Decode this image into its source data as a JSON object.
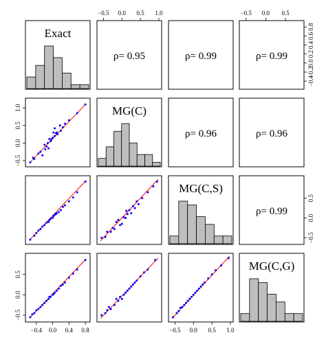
{
  "chart_data": {
    "type": "scatter",
    "layout": "pairs-matrix",
    "variables": [
      "Exact",
      "MG(C)",
      "MG(C,S)",
      "MG(C,G)"
    ],
    "correlations": [
      {
        "row": 0,
        "col": 1,
        "text": "ρ= 0.95",
        "value": 0.95
      },
      {
        "row": 0,
        "col": 2,
        "text": "ρ= 0.99",
        "value": 0.99
      },
      {
        "row": 0,
        "col": 3,
        "text": "ρ= 0.99",
        "value": 0.99
      },
      {
        "row": 1,
        "col": 2,
        "text": "ρ= 0.96",
        "value": 0.96
      },
      {
        "row": 1,
        "col": 3,
        "text": "ρ= 0.96",
        "value": 0.96
      },
      {
        "row": 2,
        "col": 3,
        "text": "ρ= 0.99",
        "value": 0.99
      }
    ],
    "axes": {
      "top": [
        {
          "col": 1,
          "lim": [
            -0.6,
            1.0
          ],
          "ticks": [
            -0.5,
            0.0,
            0.5,
            1.0
          ],
          "labels": [
            "−0.5",
            "0.0",
            "0.5",
            "1.0"
          ]
        },
        {
          "col": 3,
          "lim": [
            -0.6,
            0.9
          ],
          "ticks": [
            -0.5,
            0.0,
            0.5
          ],
          "labels": [
            "−0.5",
            "0.0",
            "0.5"
          ]
        }
      ],
      "bottom": [
        {
          "col": 0,
          "lim": [
            -0.6,
            0.85
          ],
          "ticks": [
            -0.4,
            0.0,
            0.4,
            0.8
          ],
          "labels": [
            "−0.4",
            "0.0",
            "0.4",
            "0.8"
          ]
        },
        {
          "col": 2,
          "lim": [
            -0.6,
            1.0
          ],
          "ticks": [
            -0.5,
            0.0,
            0.5,
            1.0
          ],
          "labels": [
            "−0.5",
            "0.0",
            "0.5",
            "1.0"
          ]
        }
      ],
      "left": [
        {
          "row": 1,
          "lim": [
            -0.6,
            1.2
          ],
          "ticks": [
            -0.5,
            0.0,
            0.5,
            1.0
          ],
          "labels": [
            "−0.5",
            "0.0",
            "0.5",
            "1.0"
          ]
        },
        {
          "row": 3,
          "lim": [
            -0.6,
            0.95
          ],
          "ticks": [
            -0.5,
            0.0,
            0.5
          ],
          "labels": [
            "−0.5",
            "0.0",
            "0.5"
          ]
        }
      ],
      "right": [
        {
          "row": 0,
          "lim": [
            -0.52,
            0.88
          ],
          "ticks": [
            -0.4,
            -0.2,
            0.0,
            0.2,
            0.4,
            0.6,
            0.8
          ],
          "labels": [
            "−0.4",
            "−0.2",
            "0.0",
            "0.2",
            "0.4",
            "0.6",
            "0.8"
          ]
        },
        {
          "row": 2,
          "lim": [
            -0.6,
            1.0
          ],
          "ticks": [
            -0.5,
            0.0,
            0.5
          ],
          "labels": [
            "−0.5",
            "0.0",
            "0.5"
          ]
        }
      ]
    },
    "histograms": [
      {
        "variable": "Exact",
        "counts": [
          3,
          6,
          11,
          8,
          4,
          1,
          1
        ]
      },
      {
        "variable": "MG(C)",
        "counts": [
          2,
          5,
          9,
          11,
          6,
          3,
          3,
          1
        ]
      },
      {
        "variable": "MG(C,S)",
        "counts": [
          2,
          11,
          10,
          7,
          5,
          2,
          2
        ]
      },
      {
        "variable": "MG(C,G)",
        "counts": [
          2,
          11,
          10,
          7,
          5,
          2,
          2
        ]
      }
    ],
    "scatter": [
      {
        "row": 1,
        "col": 0,
        "y_var": "MG(C)",
        "x_var": "Exact",
        "x_lim": [
          -0.6,
          0.85
        ],
        "y_lim": [
          -0.6,
          1.2
        ],
        "fit": [
          [
            -0.57,
            -0.57
          ],
          [
            0.82,
            1.12
          ]
        ],
        "points": [
          [
            -0.55,
            -0.55
          ],
          [
            -0.48,
            -0.42
          ],
          [
            -0.45,
            -0.45
          ],
          [
            -0.35,
            -0.3
          ],
          [
            -0.3,
            -0.25
          ],
          [
            -0.25,
            -0.35
          ],
          [
            -0.2,
            -0.05
          ],
          [
            -0.18,
            -0.18
          ],
          [
            -0.15,
            -0.1
          ],
          [
            -0.12,
            0.0
          ],
          [
            -0.1,
            -0.15
          ],
          [
            -0.08,
            0.12
          ],
          [
            -0.05,
            0.05
          ],
          [
            -0.03,
            0.1
          ],
          [
            0.0,
            0.15
          ],
          [
            0.02,
            0.3
          ],
          [
            0.05,
            0.2
          ],
          [
            0.05,
            0.42
          ],
          [
            0.08,
            0.28
          ],
          [
            0.1,
            0.3
          ],
          [
            0.12,
            0.25
          ],
          [
            0.18,
            0.5
          ],
          [
            0.2,
            0.35
          ],
          [
            0.25,
            0.45
          ],
          [
            0.3,
            0.55
          ],
          [
            0.4,
            0.65
          ],
          [
            0.6,
            0.85
          ],
          [
            0.8,
            1.1
          ]
        ]
      },
      {
        "row": 2,
        "col": 0,
        "y_var": "MG(C,S)",
        "x_var": "Exact",
        "x_lim": [
          -0.6,
          0.85
        ],
        "y_lim": [
          -0.6,
          1.0
        ],
        "fit": [
          [
            -0.57,
            -0.56
          ],
          [
            0.82,
            0.95
          ]
        ],
        "points": [
          [
            -0.55,
            -0.55
          ],
          [
            -0.45,
            -0.45
          ],
          [
            -0.4,
            -0.38
          ],
          [
            -0.35,
            -0.32
          ],
          [
            -0.3,
            -0.28
          ],
          [
            -0.25,
            -0.22
          ],
          [
            -0.2,
            -0.18
          ],
          [
            -0.15,
            -0.12
          ],
          [
            -0.1,
            -0.1
          ],
          [
            -0.08,
            -0.05
          ],
          [
            -0.05,
            -0.02
          ],
          [
            0.0,
            0.0
          ],
          [
            0.02,
            0.05
          ],
          [
            0.05,
            0.08
          ],
          [
            0.08,
            0.1
          ],
          [
            0.1,
            0.12
          ],
          [
            0.15,
            0.15
          ],
          [
            0.2,
            0.2
          ],
          [
            0.25,
            0.28
          ],
          [
            0.3,
            0.32
          ],
          [
            0.4,
            0.42
          ],
          [
            0.5,
            0.52
          ],
          [
            0.6,
            0.65
          ],
          [
            0.8,
            0.92
          ]
        ]
      },
      {
        "row": 3,
        "col": 0,
        "y_var": "MG(C,G)",
        "x_var": "Exact",
        "x_lim": [
          -0.6,
          0.85
        ],
        "y_lim": [
          -0.6,
          0.95
        ],
        "fit": [
          [
            -0.57,
            -0.57
          ],
          [
            0.82,
            0.88
          ]
        ],
        "points": [
          [
            -0.55,
            -0.55
          ],
          [
            -0.5,
            -0.48
          ],
          [
            -0.45,
            -0.45
          ],
          [
            -0.4,
            -0.38
          ],
          [
            -0.35,
            -0.35
          ],
          [
            -0.3,
            -0.3
          ],
          [
            -0.25,
            -0.25
          ],
          [
            -0.2,
            -0.2
          ],
          [
            -0.15,
            -0.15
          ],
          [
            -0.1,
            -0.1
          ],
          [
            -0.08,
            -0.05
          ],
          [
            -0.05,
            -0.05
          ],
          [
            0.0,
            0.0
          ],
          [
            0.02,
            0.02
          ],
          [
            0.05,
            0.05
          ],
          [
            0.1,
            0.1
          ],
          [
            0.15,
            0.15
          ],
          [
            0.2,
            0.22
          ],
          [
            0.25,
            0.25
          ],
          [
            0.3,
            0.3
          ],
          [
            0.4,
            0.42
          ],
          [
            0.5,
            0.52
          ],
          [
            0.6,
            0.62
          ],
          [
            0.8,
            0.85
          ]
        ]
      },
      {
        "row": 2,
        "col": 1,
        "y_var": "MG(C,S)",
        "x_var": "MG(C)",
        "x_lim": [
          -0.6,
          1.0
        ],
        "y_lim": [
          -0.6,
          1.0
        ],
        "fit": [
          [
            -0.58,
            -0.58
          ],
          [
            0.98,
            0.98
          ]
        ],
        "points": [
          [
            -0.55,
            -0.5
          ],
          [
            -0.45,
            -0.48
          ],
          [
            -0.4,
            -0.35
          ],
          [
            -0.3,
            -0.35
          ],
          [
            -0.25,
            -0.25
          ],
          [
            -0.2,
            -0.28
          ],
          [
            -0.15,
            -0.1
          ],
          [
            -0.1,
            -0.05
          ],
          [
            -0.05,
            -0.18
          ],
          [
            0.0,
            -0.15
          ],
          [
            0.05,
            0.02
          ],
          [
            0.1,
            0.0
          ],
          [
            0.12,
            0.18
          ],
          [
            0.15,
            0.1
          ],
          [
            0.2,
            0.2
          ],
          [
            0.25,
            0.12
          ],
          [
            0.3,
            0.3
          ],
          [
            0.35,
            0.25
          ],
          [
            0.4,
            0.42
          ],
          [
            0.45,
            0.35
          ],
          [
            0.55,
            0.5
          ],
          [
            0.7,
            0.65
          ],
          [
            0.85,
            0.8
          ],
          [
            0.95,
            0.92
          ]
        ]
      },
      {
        "row": 3,
        "col": 1,
        "y_var": "MG(C,G)",
        "x_var": "MG(C)",
        "x_lim": [
          -0.6,
          1.0
        ],
        "y_lim": [
          -0.6,
          0.95
        ],
        "fit": [
          [
            -0.58,
            -0.58
          ],
          [
            0.98,
            0.9
          ]
        ],
        "points": [
          [
            -0.55,
            -0.5
          ],
          [
            -0.45,
            -0.45
          ],
          [
            -0.4,
            -0.38
          ],
          [
            -0.35,
            -0.3
          ],
          [
            -0.3,
            -0.35
          ],
          [
            -0.2,
            -0.25
          ],
          [
            -0.15,
            -0.1
          ],
          [
            -0.1,
            -0.15
          ],
          [
            -0.05,
            -0.05
          ],
          [
            0.0,
            -0.1
          ],
          [
            0.05,
            0.0
          ],
          [
            0.1,
            0.05
          ],
          [
            0.15,
            0.1
          ],
          [
            0.2,
            0.15
          ],
          [
            0.25,
            0.2
          ],
          [
            0.3,
            0.25
          ],
          [
            0.35,
            0.3
          ],
          [
            0.4,
            0.35
          ],
          [
            0.5,
            0.45
          ],
          [
            0.6,
            0.55
          ],
          [
            0.7,
            0.62
          ],
          [
            0.9,
            0.85
          ]
        ]
      },
      {
        "row": 3,
        "col": 2,
        "y_var": "MG(C,G)",
        "x_var": "MG(C,S)",
        "x_lim": [
          -0.6,
          1.0
        ],
        "y_lim": [
          -0.6,
          0.95
        ],
        "fit": [
          [
            -0.58,
            -0.58
          ],
          [
            0.98,
            0.95
          ]
        ],
        "points": [
          [
            -0.55,
            -0.55
          ],
          [
            -0.45,
            -0.45
          ],
          [
            -0.4,
            -0.4
          ],
          [
            -0.35,
            -0.32
          ],
          [
            -0.3,
            -0.3
          ],
          [
            -0.25,
            -0.25
          ],
          [
            -0.2,
            -0.2
          ],
          [
            -0.15,
            -0.15
          ],
          [
            -0.1,
            -0.1
          ],
          [
            -0.05,
            -0.05
          ],
          [
            0.0,
            0.0
          ],
          [
            0.05,
            0.05
          ],
          [
            0.1,
            0.1
          ],
          [
            0.15,
            0.15
          ],
          [
            0.2,
            0.2
          ],
          [
            0.25,
            0.25
          ],
          [
            0.3,
            0.3
          ],
          [
            0.4,
            0.4
          ],
          [
            0.5,
            0.5
          ],
          [
            0.6,
            0.6
          ],
          [
            0.75,
            0.72
          ],
          [
            0.95,
            0.9
          ]
        ]
      }
    ],
    "colors": {
      "points": "#0000ff",
      "fit_line": "#ff0000",
      "hist_fill": "#bebebe",
      "frame": "#000000"
    },
    "grid": false
  }
}
